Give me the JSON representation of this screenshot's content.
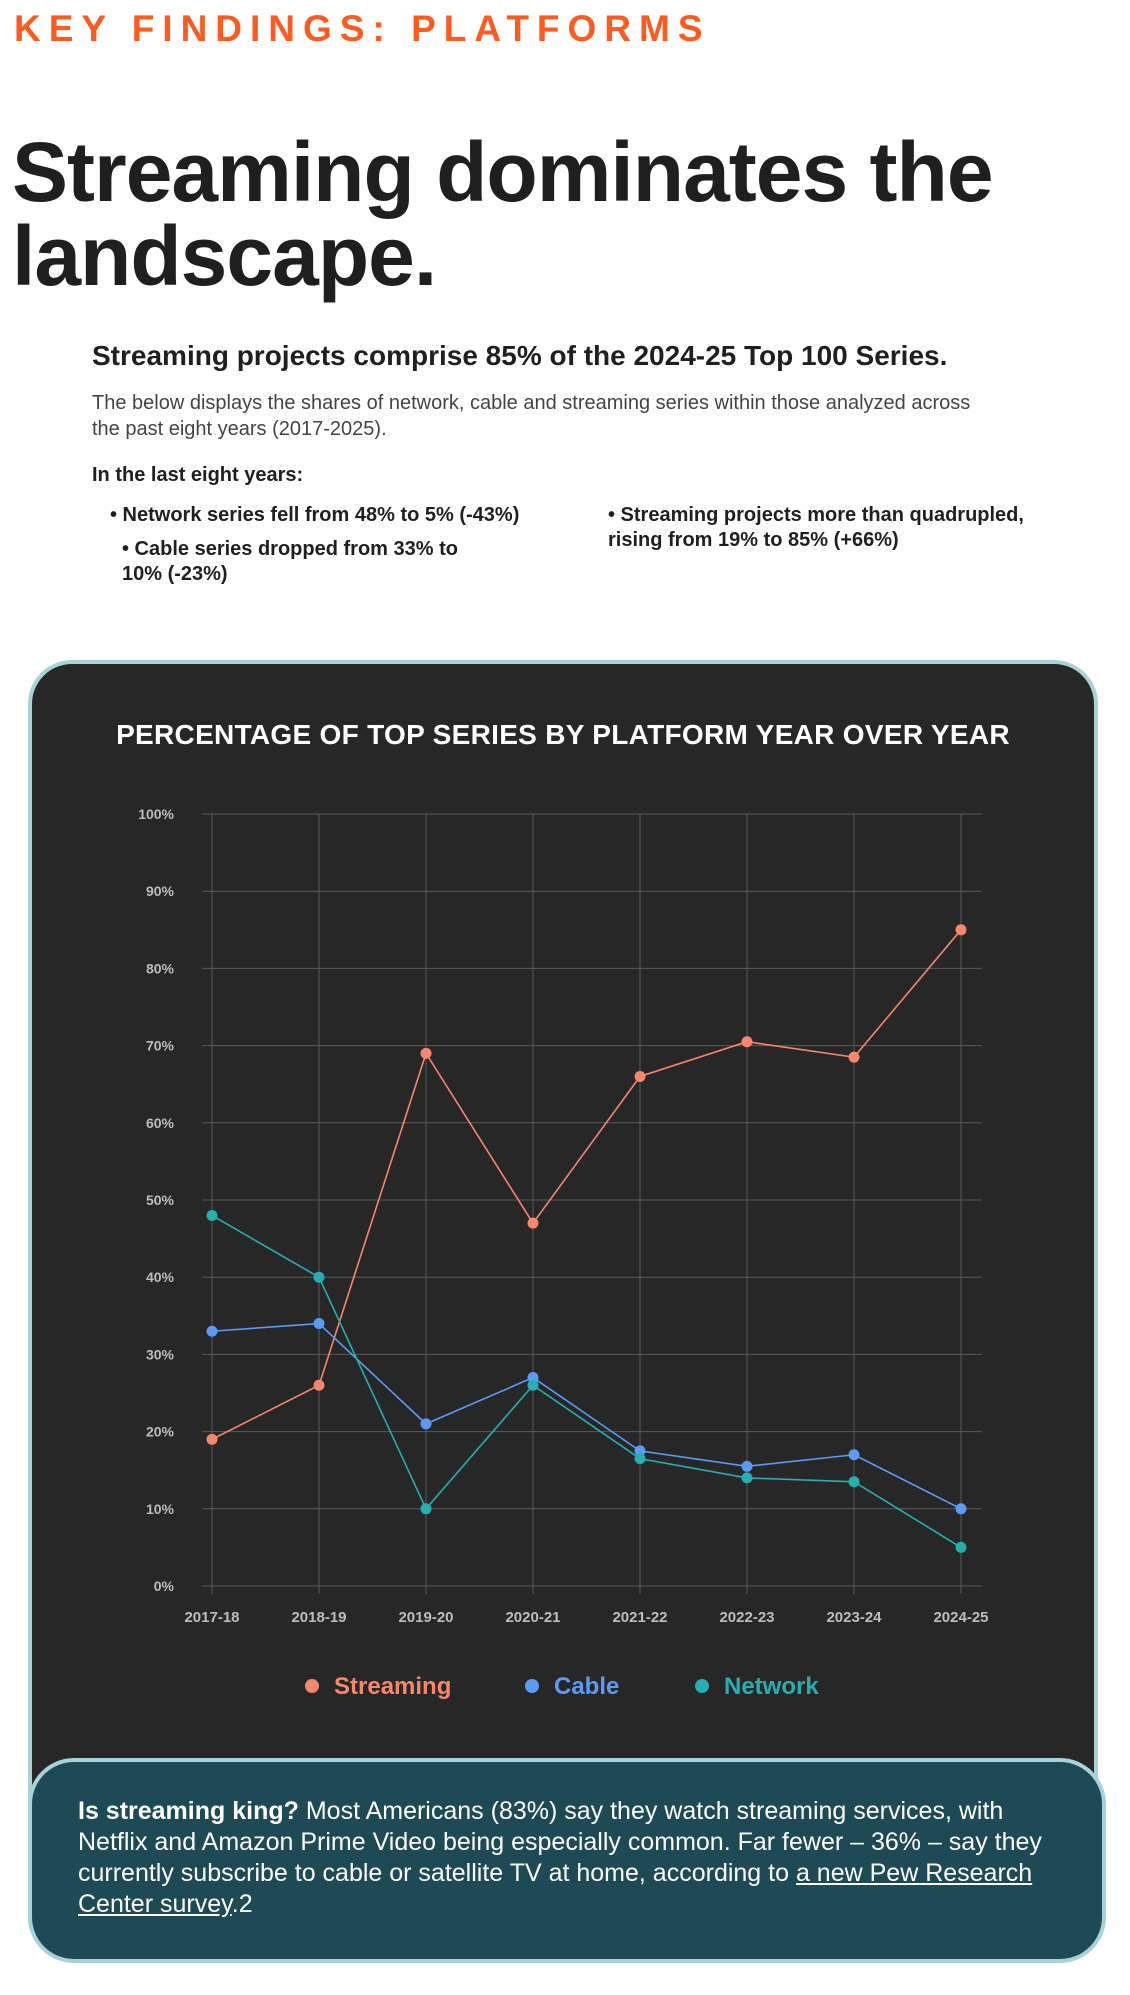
{
  "eyebrow": "KEY FINDINGS: PLATFORMS",
  "headline": "Streaming dominates the landscape.",
  "intro": {
    "subhead": "Streaming projects comprise 85% of the 2024-25 Top 100 Series.",
    "description": "The below displays the shares of network, cable and streaming series within those analyzed across the past eight years (2017-2025).",
    "bullets_title": "In the last eight years:",
    "bullets": [
      "• Network series fell from 48% to 5% (-43%)",
      "• Cable series dropped from 33% to 10% (-23%)",
      "• Streaming projects more than quadrupled, rising from 19% to 85% (+66%)"
    ]
  },
  "colors": {
    "streaming": "#f4876c",
    "cable": "#5b9bf5",
    "network": "#26aeb1",
    "card_bg": "#272727",
    "grid": "#5a5a5a",
    "tick": "#bdbdbd"
  },
  "chart_data": {
    "type": "line",
    "title": "PERCENTAGE OF TOP SERIES BY PLATFORM YEAR OVER YEAR",
    "categories": [
      "2017-18",
      "2018-19",
      "2019-20",
      "2020-21",
      "2021-22",
      "2022-23",
      "2023-24",
      "2024-25"
    ],
    "y_ticks": [
      "0%",
      "10%",
      "20%",
      "30%",
      "40%",
      "50%",
      "60%",
      "70%",
      "80%",
      "90%",
      "100%"
    ],
    "ylim": [
      0,
      100
    ],
    "grid": true,
    "legend_position": "bottom-center",
    "series": [
      {
        "name": "Streaming",
        "color": "#f4876c",
        "values": [
          19,
          26,
          69,
          47,
          66,
          70.5,
          68.5,
          85
        ]
      },
      {
        "name": "Cable",
        "color": "#5b9bf5",
        "values": [
          33,
          34,
          21,
          27,
          17.5,
          15.5,
          17,
          10
        ]
      },
      {
        "name": "Network",
        "color": "#26aeb1",
        "values": [
          48,
          40,
          10,
          26,
          16.5,
          14,
          13.5,
          5
        ]
      }
    ]
  },
  "callout": {
    "lead": "Is streaming king?",
    "text_before_link": " Most Americans (83%) say they watch streaming services, with Netflix and Amazon Prime Video being especially common. Far fewer – 36% – say they currently subscribe to cable or satellite TV at home, according to ",
    "link": "a new Pew Research Center survey",
    "text_after_link": ".2"
  }
}
